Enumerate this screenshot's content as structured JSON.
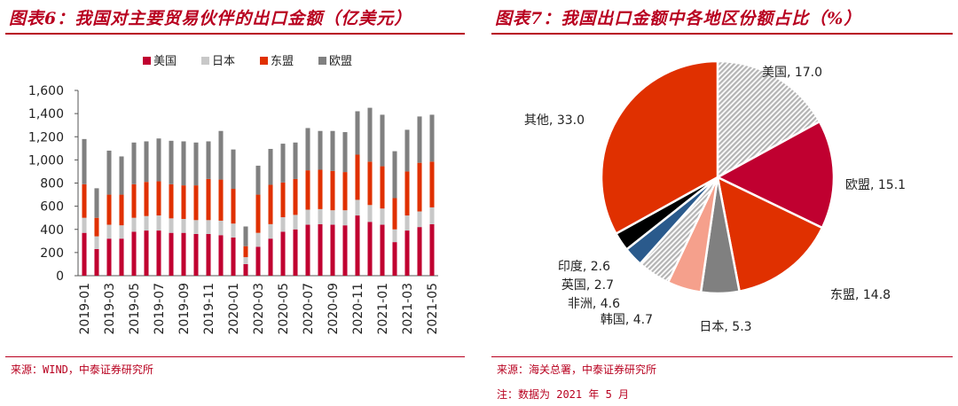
{
  "left": {
    "title": "图表6：我国对主要贸易伙伴的出口金额（亿美元）",
    "source": "来源：WIND，中泰证券研究所"
  },
  "right": {
    "title": "图表7：我国出口金额中各地区份额占比（%）",
    "source": "来源：海关总署，中泰证券研究所",
    "note": "注：数据为 2021 年 5 月"
  },
  "chart_data": [
    {
      "type": "bar",
      "stacked": true,
      "title": "图表6：我国对主要贸易伙伴的出口金额（亿美元）",
      "ylim": [
        0,
        1600
      ],
      "yticks": [
        "0",
        "200",
        "400",
        "600",
        "800",
        "1,000",
        "1,200",
        "1,400",
        "1,600"
      ],
      "ytick_values": [
        0,
        200,
        400,
        600,
        800,
        1000,
        1200,
        1400,
        1600
      ],
      "legend_position": "top-center",
      "categories": [
        "2019-01",
        "2019-02",
        "2019-03",
        "2019-04",
        "2019-05",
        "2019-06",
        "2019-07",
        "2019-08",
        "2019-09",
        "2019-10",
        "2019-11",
        "2019-12",
        "2020-01",
        "2020-02",
        "2020-03",
        "2020-04",
        "2020-05",
        "2020-06",
        "2020-07",
        "2020-08",
        "2020-09",
        "2020-10",
        "2020-11",
        "2020-12",
        "2021-01",
        "2021-02",
        "2021-03",
        "2021-04",
        "2021-05"
      ],
      "xtick_labels": [
        "2019-01",
        "2019-03",
        "2019-05",
        "2019-07",
        "2019-09",
        "2019-11",
        "2020-01",
        "2020-03",
        "2020-05",
        "2020-07",
        "2020-09",
        "2020-11",
        "2021-01",
        "2021-03",
        "2021-05"
      ],
      "series": [
        {
          "name": "美国",
          "color": "#c00030",
          "values": [
            370,
            230,
            320,
            320,
            380,
            390,
            390,
            370,
            370,
            360,
            360,
            350,
            330,
            100,
            250,
            320,
            380,
            400,
            440,
            445,
            440,
            435,
            520,
            465,
            440,
            290,
            390,
            420,
            445
          ]
        },
        {
          "name": "日本",
          "color": "#c8c8c8",
          "values": [
            130,
            110,
            120,
            115,
            120,
            125,
            130,
            125,
            120,
            120,
            120,
            125,
            120,
            60,
            120,
            125,
            125,
            125,
            130,
            130,
            125,
            130,
            135,
            145,
            140,
            110,
            130,
            135,
            145
          ]
        },
        {
          "name": "东盟",
          "color": "#e03000",
          "values": [
            290,
            160,
            260,
            265,
            290,
            295,
            295,
            295,
            290,
            300,
            355,
            355,
            300,
            95,
            330,
            340,
            300,
            310,
            340,
            340,
            340,
            330,
            390,
            375,
            365,
            270,
            380,
            420,
            395
          ]
        },
        {
          "name": "欧盟",
          "color": "#808080",
          "values": [
            390,
            255,
            380,
            330,
            360,
            350,
            370,
            375,
            380,
            370,
            325,
            420,
            340,
            170,
            250,
            310,
            335,
            315,
            365,
            335,
            345,
            345,
            375,
            465,
            445,
            405,
            360,
            400,
            405
          ]
        }
      ]
    },
    {
      "type": "pie",
      "title": "图表7：我国出口金额中各地区份额占比（%）",
      "slices": [
        {
          "label": "美国",
          "value": 17.0,
          "display": "17.0",
          "color": "#c8c8c8",
          "pattern": "hatch"
        },
        {
          "label": "欧盟",
          "value": 15.1,
          "display": "15.1",
          "color": "#c00030"
        },
        {
          "label": "东盟",
          "value": 14.8,
          "display": "14.8",
          "color": "#e03000"
        },
        {
          "label": "日本",
          "value": 5.3,
          "display": "5.3",
          "color": "#808080"
        },
        {
          "label": "韩国",
          "value": 4.7,
          "display": "4.7",
          "color": "#f5a08c"
        },
        {
          "label": "非洲",
          "value": 4.6,
          "display": "4.6",
          "color": "#c8c8c8",
          "pattern": "hatch"
        },
        {
          "label": "英国",
          "value": 2.7,
          "display": "2.7",
          "color": "#2a5a8c"
        },
        {
          "label": "印度",
          "value": 2.6,
          "display": "2.6",
          "color": "#000000"
        },
        {
          "label": "其他",
          "value": 33.0,
          "display": "33.0",
          "color": "#e03000"
        }
      ]
    }
  ]
}
